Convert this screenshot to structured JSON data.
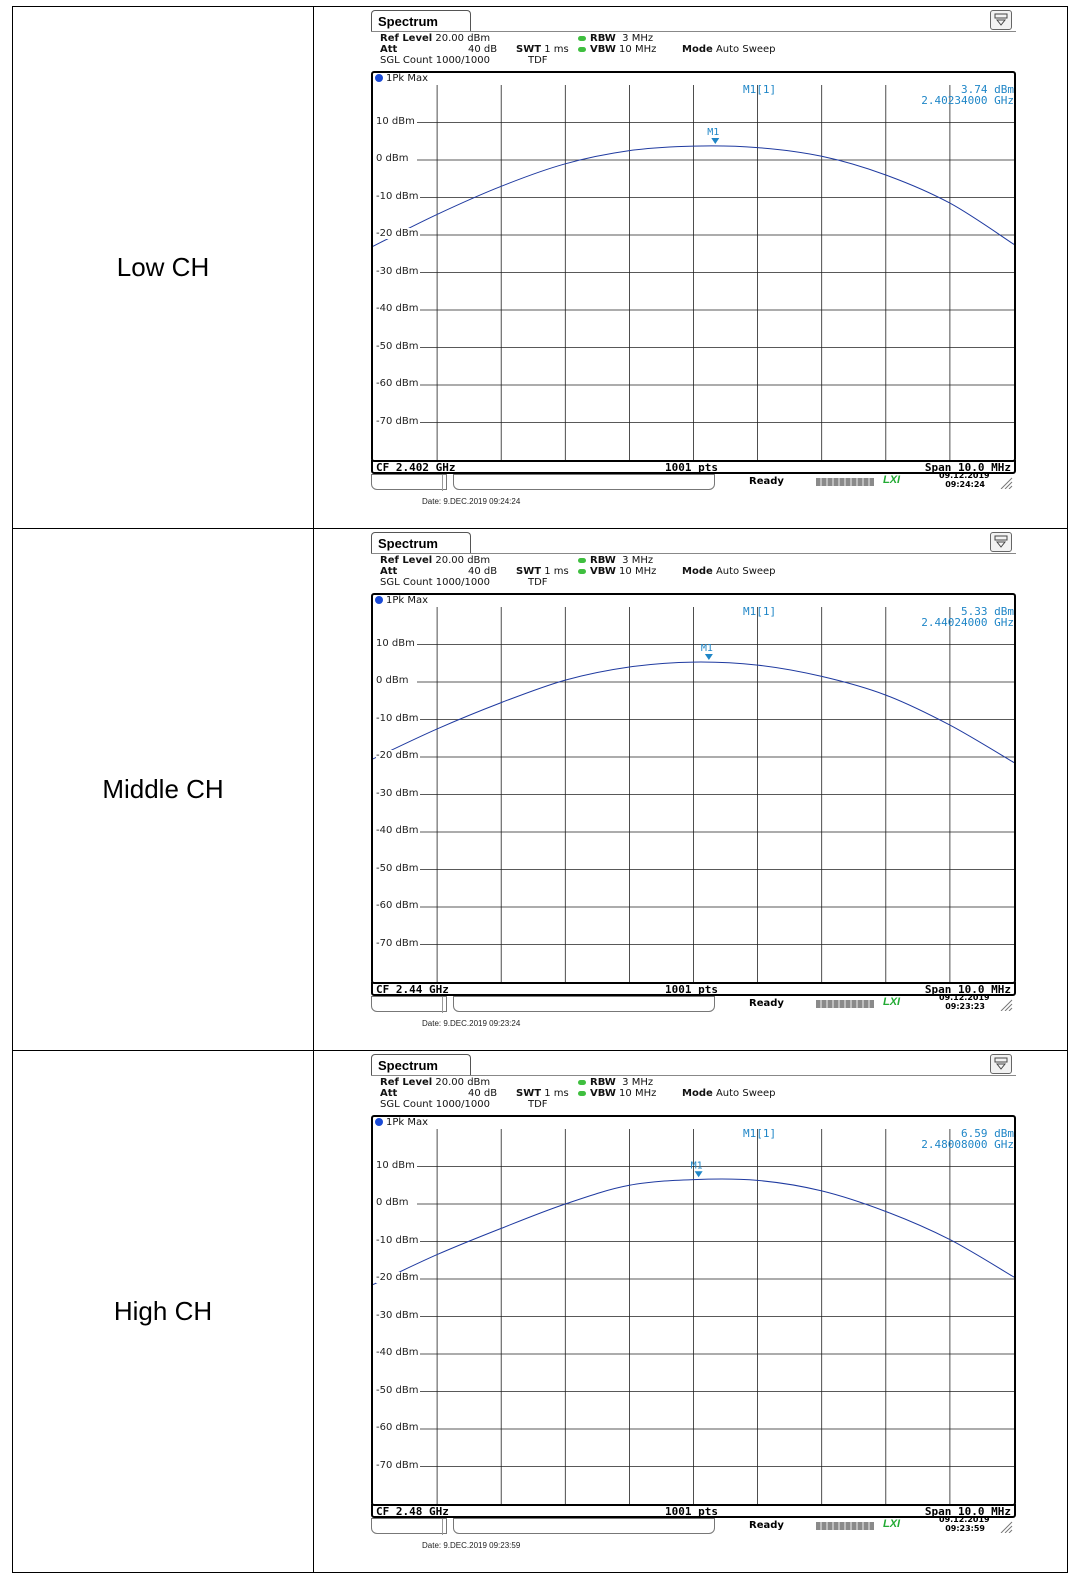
{
  "columns": {
    "label_header": "",
    "plot_header": ""
  },
  "analyzer": {
    "tab_title": "Spectrum",
    "ref_level_label": "Ref Level",
    "ref_level_value": "20.00 dBm",
    "att_label": "Att",
    "att_value": "40 dB",
    "swt_label": "SWT",
    "swt_value": "1 ms",
    "rbw_label": "RBW",
    "rbw_value": "3 MHz",
    "vbw_label": "VBW",
    "vbw_value": "10 MHz",
    "mode_label": "Mode",
    "mode_value": "Auto Sweep",
    "sgl_count": "SGL Count 1000/1000",
    "tdf": "TDF",
    "trace_label": "1Pk Max",
    "marker_head": "M1[1]",
    "marker_name": "M1",
    "points": "1001 pts",
    "span": "Span 10.0 MHz",
    "ready": "Ready",
    "y_ticks": [
      "10 dBm",
      "0 dBm",
      "-10 dBm",
      "-20 dBm",
      "-30 dBm",
      "-40 dBm",
      "-50 dBm",
      "-60 dBm",
      "-70 dBm"
    ]
  },
  "rows": [
    {
      "label": "Low CH",
      "marker_value": "3.74 dBm",
      "marker_freq": "2.40234000 GHz",
      "cf": "CF 2.402 GHz",
      "status_date": "09.12.2019",
      "status_time": "09:24:24",
      "caption_date": "Date: 9.DEC.2019  09:24:24"
    },
    {
      "label": "Middle CH",
      "marker_value": "5.33 dBm",
      "marker_freq": "2.44024000 GHz",
      "cf": "CF 2.44 GHz",
      "status_date": "09.12.2019",
      "status_time": "09:23:23",
      "caption_date": "Date: 9.DEC.2019  09:23:24"
    },
    {
      "label": "High CH",
      "marker_value": "6.59 dBm",
      "marker_freq": "2.48008000 GHz",
      "cf": "CF 2.48 GHz",
      "status_date": "09.12.2019",
      "status_time": "09:23:59",
      "caption_date": "Date: 9.DEC.2019  09:23:59"
    }
  ],
  "chart_data": [
    {
      "type": "line",
      "x": [
        2.397,
        2.398,
        2.399,
        2.4,
        2.401,
        2.402,
        2.403,
        2.404,
        2.405,
        2.406,
        2.407
      ],
      "series": [
        {
          "values": [
            -23.0,
            -14.5,
            -7.0,
            -1.0,
            2.5,
            3.7,
            3.3,
            1.0,
            -4.0,
            -11.5,
            -22.5
          ]
        }
      ],
      "ylim": [
        -80,
        20
      ],
      "marker": {
        "x": 2.40234,
        "y": 3.74
      },
      "colors": {
        "trace": "#1f3aa0",
        "marker": "#1f86c7"
      }
    },
    {
      "type": "line",
      "x": [
        2.435,
        2.436,
        2.437,
        2.438,
        2.439,
        2.44,
        2.441,
        2.442,
        2.443,
        2.444,
        2.445
      ],
      "series": [
        {
          "values": [
            -20.5,
            -12.5,
            -5.5,
            0.5,
            4.0,
            5.3,
            4.5,
            1.5,
            -3.5,
            -11.5,
            -21.5
          ]
        }
      ],
      "ylim": [
        -80,
        20
      ],
      "marker": {
        "x": 2.44024,
        "y": 5.33
      },
      "colors": {
        "trace": "#1f3aa0",
        "marker": "#1f86c7"
      }
    },
    {
      "type": "line",
      "x": [
        2.475,
        2.476,
        2.477,
        2.478,
        2.479,
        2.48,
        2.481,
        2.482,
        2.483,
        2.484,
        2.485
      ],
      "series": [
        {
          "values": [
            -21.5,
            -13.5,
            -6.5,
            0.0,
            5.0,
            6.5,
            6.3,
            3.5,
            -2.0,
            -9.5,
            -19.5
          ]
        }
      ],
      "ylim": [
        -80,
        20
      ],
      "marker": {
        "x": 2.48008,
        "y": 6.59
      },
      "colors": {
        "trace": "#1f3aa0",
        "marker": "#1f86c7"
      }
    }
  ]
}
